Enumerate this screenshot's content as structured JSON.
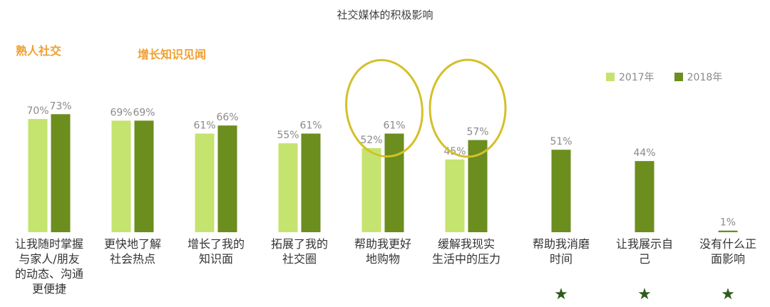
{
  "chart_data": {
    "type": "bar",
    "title": "社交媒体的积极影响",
    "categories": [
      "让我随时掌握\n与家人/朋友\n的动态、沟通\n更便捷",
      "更快地了解\n社会热点",
      "增长了我的\n知识面",
      "拓展了我的\n社交圈",
      "帮助我更好\n地购物",
      "缓解我现实\n生活中的压力",
      "帮助我消磨\n时间",
      "让我展示自\n己",
      "没有什么正\n面影响"
    ],
    "series": [
      {
        "name": "2017年",
        "color": "#c5e36f",
        "values": [
          70,
          69,
          61,
          55,
          52,
          45,
          null,
          null,
          null
        ]
      },
      {
        "name": "2018年",
        "color": "#6b8e1e",
        "values": [
          73,
          69,
          66,
          61,
          61,
          57,
          51,
          44,
          1
        ]
      }
    ],
    "value_suffix": "%",
    "ylim": [
      0,
      80
    ],
    "grid": false,
    "legend_position": "top-right",
    "annotations": [
      "熟人社交",
      "增长知识见闻"
    ],
    "highlight_color": "#d4c02a",
    "star_marker": "★",
    "starred_categories": [
      6,
      7,
      8
    ]
  }
}
